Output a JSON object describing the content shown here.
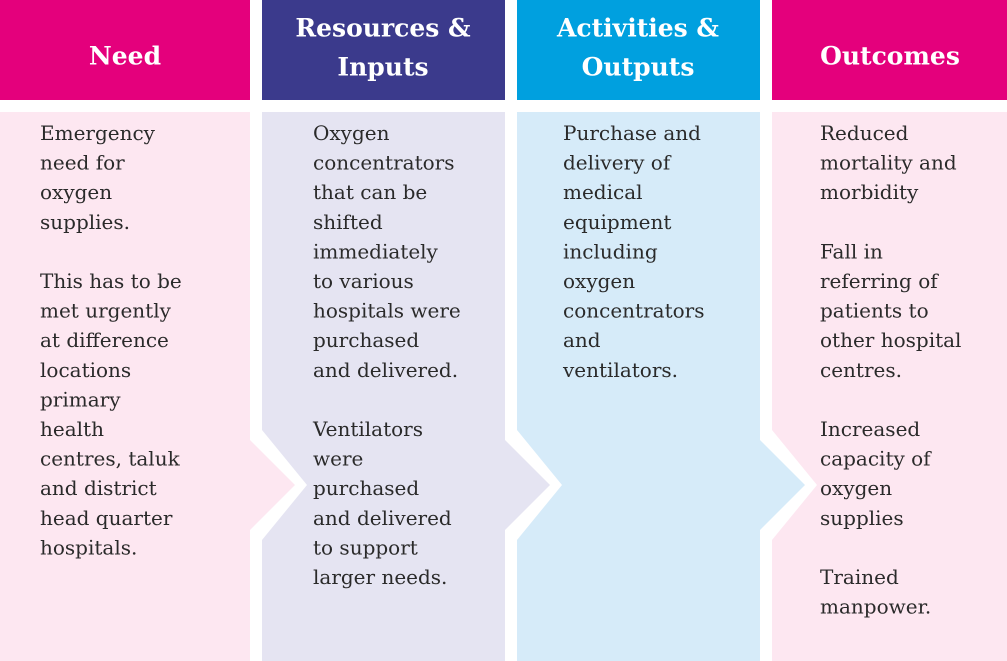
{
  "columns": [
    {
      "title": [
        "Need"
      ],
      "paragraphs": [
        [
          "Emergency",
          "need for",
          "oxygen",
          "supplies."
        ],
        [
          "This has to be",
          "met urgently",
          "at difference",
          "locations",
          "primary",
          "health",
          "centres, taluk",
          "and district",
          "head quarter",
          "hospitals."
        ]
      ]
    },
    {
      "title": [
        "Resources &",
        "Inputs"
      ],
      "paragraphs": [
        [
          "Oxygen",
          "concentrators",
          "that can be",
          "shifted",
          "immediately",
          "to various",
          "hospitals were",
          "purchased",
          "and delivered."
        ],
        [
          "Ventilators",
          "were",
          "purchased",
          "and delivered",
          "to support",
          "larger needs."
        ]
      ]
    },
    {
      "title": [
        "Activities &",
        "Outputs"
      ],
      "paragraphs": [
        [
          "Purchase and",
          "delivery of",
          "medical",
          "equipment",
          "including",
          "oxygen",
          "concentrators",
          "and",
          "ventilators."
        ]
      ]
    },
    {
      "title": [
        "Outcomes"
      ],
      "paragraphs": [
        [
          "Reduced",
          "mortality and",
          "morbidity"
        ],
        [
          "Fall in",
          "referring of",
          "patients to",
          "other hospital",
          "centres."
        ],
        [
          "Increased",
          "capacity of",
          "oxygen",
          "supplies"
        ],
        [
          "Trained",
          "manpower."
        ]
      ]
    }
  ]
}
